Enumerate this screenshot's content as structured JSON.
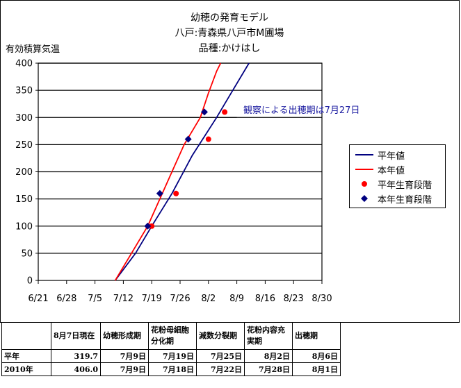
{
  "chart_data": {
    "type": "line",
    "title_lines": [
      "幼穂の発育モデル",
      "八戸:青森県八戸市M圃場",
      "品種:かけはし"
    ],
    "ylabel": "有効積算気温",
    "ylim": [
      0,
      400
    ],
    "yticks": [
      "0",
      "50",
      "100",
      "150",
      "200",
      "250",
      "300",
      "350",
      "400"
    ],
    "xticks": [
      "6/21",
      "6/28",
      "7/5",
      "7/12",
      "7/19",
      "7/26",
      "8/2",
      "8/9",
      "8/16",
      "8/23",
      "8/30"
    ],
    "grid": "horizontal",
    "legend_position": "right",
    "annotation": "観察による出穂期は7月27日",
    "annotation_line": {
      "x_start": "7/26",
      "x_end": "8/9",
      "y": 300
    },
    "series": [
      {
        "name": "平年値",
        "kind": "line",
        "color": "#000080",
        "points": [
          [
            "7/10",
            0
          ],
          [
            "7/15",
            50
          ],
          [
            "7/19",
            100
          ],
          [
            "7/24",
            160
          ],
          [
            "7/29",
            230
          ],
          [
            "8/4",
            300
          ],
          [
            "8/8",
            350
          ],
          [
            "8/12",
            400
          ]
        ]
      },
      {
        "name": "本年値",
        "kind": "line",
        "color": "#ff0000",
        "points": [
          [
            "7/10",
            0
          ],
          [
            "7/14",
            50
          ],
          [
            "7/18",
            100
          ],
          [
            "7/21",
            150
          ],
          [
            "7/24",
            200
          ],
          [
            "7/27",
            250
          ],
          [
            "7/31",
            300
          ],
          [
            "8/2",
            345
          ],
          [
            "8/4",
            385
          ],
          [
            "8/5",
            400
          ]
        ]
      },
      {
        "name": "平年生育段階",
        "kind": "marker",
        "marker": "circle",
        "color": "#ff0000",
        "points": [
          [
            "7/19",
            100
          ],
          [
            "7/25",
            160
          ],
          [
            "8/2",
            260
          ],
          [
            "8/6",
            310
          ]
        ]
      },
      {
        "name": "本年生育段階",
        "kind": "marker",
        "marker": "diamond",
        "color": "#000080",
        "points": [
          [
            "7/18",
            100
          ],
          [
            "7/21",
            160
          ],
          [
            "7/28",
            260
          ],
          [
            "8/1",
            310
          ]
        ]
      }
    ]
  },
  "table": {
    "headers": [
      "",
      "8月7日現在",
      "幼穂形成期",
      "花粉母細胞分化期",
      "減数分裂期",
      "花粉内容充実期",
      "出穂期"
    ],
    "rows": [
      [
        "平年",
        "319.7",
        "7月9日",
        "7月19日",
        "7月25日",
        "8月2日",
        "8月6日"
      ],
      [
        "2010年",
        "406.0",
        "7月9日",
        "7月18日",
        "7月22日",
        "7月28日",
        "8月1日"
      ]
    ]
  }
}
